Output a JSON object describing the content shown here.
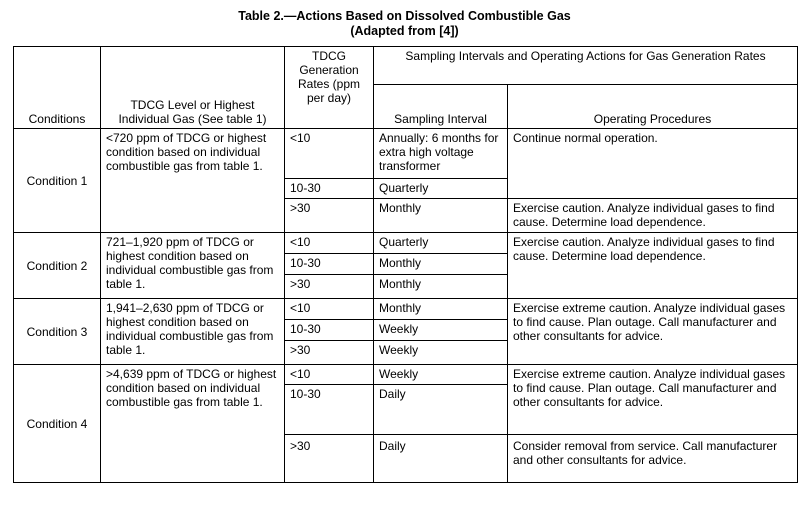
{
  "title": {
    "line1": "Table 2.—Actions Based on Dissolved Combustible Gas",
    "line2": "(Adapted from [4])"
  },
  "headers": {
    "conditions": "Conditions",
    "tdcg_level": "TDCG Level or Highest Individual Gas (See table 1)",
    "rates": "TDCG Generation Rates (ppm per day)",
    "sampling_group": "Sampling Intervals and Operating Actions for Gas Generation Rates",
    "interval": "Sampling Interval",
    "procedures": "Operating Procedures"
  },
  "conditions": [
    {
      "name": "Condition 1",
      "level": "<720 ppm of TDCG or highest condition based on individual combustible gas from table 1.",
      "rows": [
        {
          "rate": "<10",
          "interval": "Annually:  6 months for extra high voltage transformer"
        },
        {
          "rate": "10-30",
          "interval": "Quarterly"
        },
        {
          "rate": ">30",
          "interval": "Monthly"
        }
      ],
      "procedures": [
        "Continue normal operation.",
        "Exercise caution.  Analyze individual gases to find cause.  Determine load dependence."
      ]
    },
    {
      "name": "Condition 2",
      "level": "721–1,920 ppm of TDCG or highest condition based on individual combustible gas from table 1.",
      "rows": [
        {
          "rate": "<10",
          "interval": "Quarterly"
        },
        {
          "rate": "10-30",
          "interval": "Monthly"
        },
        {
          "rate": ">30",
          "interval": "Monthly"
        }
      ],
      "procedures": [
        "Exercise caution.  Analyze individual gases to find cause.  Determine load dependence."
      ]
    },
    {
      "name": "Condition 3",
      "level": "1,941–2,630 ppm of TDCG or highest condition based on individual combustible gas from table 1.",
      "rows": [
        {
          "rate": "<10",
          "interval": "Monthly"
        },
        {
          "rate": "10-30",
          "interval": "Weekly"
        },
        {
          "rate": ">30",
          "interval": "Weekly"
        }
      ],
      "procedures": [
        "Exercise extreme caution.  Analyze individual gases to find cause.  Plan outage.  Call manufacturer and other consultants for advice."
      ]
    },
    {
      "name": "Condition 4",
      "level": ">4,639 ppm of TDCG or highest condition based on individual combustible gas from table 1.",
      "rows": [
        {
          "rate": "<10",
          "interval": "Weekly"
        },
        {
          "rate": "10-30",
          "interval": "Daily"
        },
        {
          "rate": ">30",
          "interval": "Daily"
        }
      ],
      "procedures": [
        "Exercise extreme caution.  Analyze individual gases to find cause.  Plan outage.  Call manufacturer and other consultants for advice.",
        "Consider removal from service.  Call manufacturer and other consultants for advice."
      ]
    }
  ]
}
